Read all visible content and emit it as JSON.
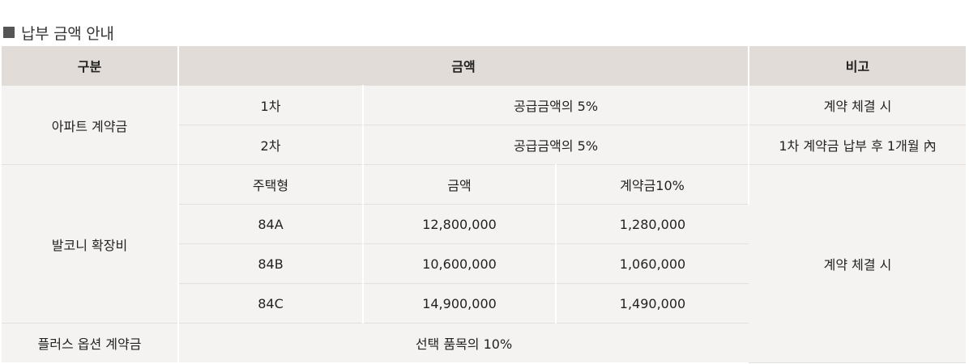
{
  "section": {
    "title": "납부 금액 안내"
  },
  "table": {
    "headers": {
      "category": "구분",
      "amount": "금액",
      "note": "비고"
    },
    "apartment": {
      "label": "아파트 계약금",
      "rows": [
        {
          "stage": "1차",
          "amount": "공급금액의 5%",
          "note": "계약 체결 시"
        },
        {
          "stage": "2차",
          "amount": "공급금액의 5%",
          "note": "1차 계약금 납부 후 1개월 內"
        }
      ]
    },
    "balcony": {
      "label": "발코니 확장비",
      "sub_headers": {
        "type": "주택형",
        "amount": "금액",
        "deposit": "계약금10%"
      },
      "rows": [
        {
          "type": "84A",
          "amount": "12,800,000",
          "deposit": "1,280,000"
        },
        {
          "type": "84B",
          "amount": "10,600,000",
          "deposit": "1,060,000"
        },
        {
          "type": "84C",
          "amount": "14,900,000",
          "deposit": "1,490,000"
        }
      ],
      "note": "계약 체결 시"
    },
    "plus_option": {
      "label": "플러스 옵션 계약금",
      "amount": "선택 품목의 10%"
    }
  }
}
